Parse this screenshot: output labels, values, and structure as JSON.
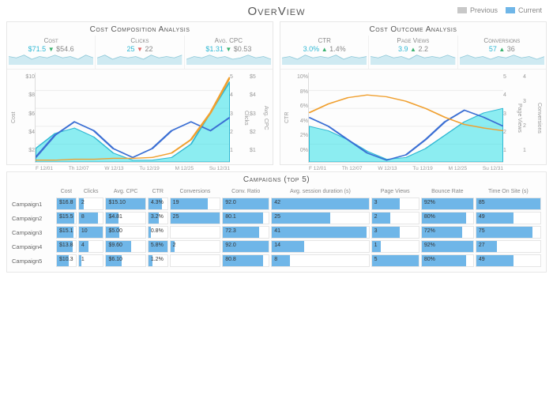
{
  "title": "OverView",
  "legend": {
    "previous": "Previous",
    "current": "Current",
    "prev_color": "#c8c8c8",
    "cur_color": "#6fb6e8"
  },
  "colors": {
    "cyan": "#2fe0e8",
    "cyan_line": "#2fb8d4",
    "blue": "#3b6fd4",
    "orange": "#f0a030",
    "grid": "#eeeeee",
    "spark_fill": "#cfeaf2",
    "spark_line": "#8fc8d8"
  },
  "left_panel": {
    "title": "Cost Composition Analysis",
    "kpis": [
      {
        "label": "Cost",
        "current": "$71.5",
        "previous": "$54.6",
        "dir": "down"
      },
      {
        "label": "Clicks",
        "current": "25",
        "previous": "22",
        "dir": "down_red"
      },
      {
        "label": "Avg. CPC",
        "current": "$1.31",
        "previous": "$0.53",
        "dir": "down"
      }
    ],
    "sparks": [
      [
        6,
        5,
        7,
        4,
        6,
        5,
        7,
        5,
        6,
        4,
        7,
        5
      ],
      [
        5,
        7,
        4,
        6,
        5,
        6,
        4,
        7,
        5,
        6,
        5,
        7
      ],
      [
        4,
        6,
        5,
        7,
        5,
        6,
        4,
        5,
        7,
        5,
        6,
        4
      ]
    ],
    "chart": {
      "x_labels": [
        "F 12/01",
        "Th 12/07",
        "W 12/13",
        "Tu 12/19",
        "M 12/25",
        "Su 12/31"
      ],
      "y_left": {
        "title": "Cost",
        "ticks": [
          "$10",
          "$8",
          "$6",
          "$4",
          "$2"
        ]
      },
      "y_right1": {
        "title": "Clicks",
        "ticks": [
          "5",
          "4",
          "3",
          "2",
          "1"
        ]
      },
      "y_right2": {
        "title": "Avg. CPC",
        "ticks": [
          "$5",
          "$4",
          "$3",
          "$2",
          "$1"
        ]
      },
      "area_cyan": [
        0.15,
        0.32,
        0.38,
        0.28,
        0.1,
        0.02,
        0.02,
        0.05,
        0.2,
        0.55,
        0.9
      ],
      "line_blue": [
        0.05,
        0.3,
        0.45,
        0.35,
        0.15,
        0.05,
        0.15,
        0.35,
        0.45,
        0.35,
        0.5
      ],
      "line_orange": [
        0.02,
        0.02,
        0.03,
        0.03,
        0.04,
        0.04,
        0.05,
        0.1,
        0.25,
        0.55,
        0.95
      ]
    }
  },
  "right_panel": {
    "title": "Cost Outcome Analysis",
    "kpis": [
      {
        "label": "CTR",
        "current": "3.0%",
        "previous": "1.4%",
        "dir": "up"
      },
      {
        "label": "Page Views",
        "current": "3.9",
        "previous": "2.2",
        "dir": "up"
      },
      {
        "label": "Conversions",
        "current": "57",
        "previous": "36",
        "dir": "up"
      }
    ],
    "sparks": [
      [
        5,
        6,
        4,
        7,
        5,
        6,
        5,
        7,
        4,
        6,
        5,
        6
      ],
      [
        6,
        5,
        7,
        5,
        6,
        4,
        7,
        5,
        6,
        5,
        7,
        5
      ],
      [
        5,
        7,
        5,
        6,
        4,
        6,
        5,
        7,
        5,
        6,
        4,
        6
      ]
    ],
    "chart": {
      "x_labels": [
        "F 12/01",
        "Th 12/07",
        "W 12/13",
        "Tu 12/19",
        "M 12/25",
        "Su 12/31"
      ],
      "y_left": {
        "title": "CTR",
        "ticks": [
          "10%",
          "8%",
          "6%",
          "4%",
          "2%",
          "0%"
        ]
      },
      "y_right1": {
        "title": "Page Views",
        "ticks": [
          "5",
          "4",
          "3",
          "2",
          "1"
        ]
      },
      "y_right2": {
        "title": "Conversions",
        "ticks": [
          "4",
          "3",
          "2",
          "1"
        ]
      },
      "area_cyan": [
        0.4,
        0.35,
        0.25,
        0.12,
        0.03,
        0.05,
        0.15,
        0.3,
        0.45,
        0.55,
        0.6
      ],
      "line_blue": [
        0.5,
        0.4,
        0.25,
        0.1,
        0.02,
        0.08,
        0.25,
        0.45,
        0.58,
        0.5,
        0.4
      ],
      "line_orange": [
        0.55,
        0.65,
        0.72,
        0.75,
        0.73,
        0.68,
        0.6,
        0.5,
        0.42,
        0.38,
        0.35
      ]
    }
  },
  "campaigns": {
    "title": "Campaigns (top 5)",
    "columns": [
      "Cost",
      "Clicks",
      "Avg. CPC",
      "CTR",
      "Conversions",
      "Conv. Ratio",
      "Avg. session duration (s)",
      "Page Views",
      "Bounce Rate",
      "Time On Site (s)"
    ],
    "rows": [
      {
        "label": "Campaign1",
        "cells": [
          {
            "v": "$16.8",
            "p": 100
          },
          {
            "v": "2",
            "p": 20
          },
          {
            "v": "$15.10",
            "p": 100
          },
          {
            "v": "4.3%",
            "p": 74
          },
          {
            "v": "19",
            "p": 76
          },
          {
            "v": "92.0",
            "p": 100
          },
          {
            "v": "42",
            "p": 100
          },
          {
            "v": "3",
            "p": 60
          },
          {
            "v": "92%",
            "p": 100
          },
          {
            "v": "85",
            "p": 100
          }
        ]
      },
      {
        "label": "Campaign2",
        "cells": [
          {
            "v": "$15.5",
            "p": 92
          },
          {
            "v": "8",
            "p": 80
          },
          {
            "v": "$4.81",
            "p": 32
          },
          {
            "v": "3.2%",
            "p": 55
          },
          {
            "v": "25",
            "p": 100
          },
          {
            "v": "80.1",
            "p": 87
          },
          {
            "v": "25",
            "p": 60
          },
          {
            "v": "2",
            "p": 40
          },
          {
            "v": "80%",
            "p": 87
          },
          {
            "v": "49",
            "p": 58
          }
        ]
      },
      {
        "label": "Campaign3",
        "cells": [
          {
            "v": "$15.1",
            "p": 90
          },
          {
            "v": "10",
            "p": 100
          },
          {
            "v": "$5.00",
            "p": 33
          },
          {
            "v": "0.8%",
            "p": 14
          },
          {
            "v": "",
            "p": 0
          },
          {
            "v": "72.3",
            "p": 79
          },
          {
            "v": "41",
            "p": 98
          },
          {
            "v": "3",
            "p": 60
          },
          {
            "v": "72%",
            "p": 78
          },
          {
            "v": "75",
            "p": 88
          }
        ]
      },
      {
        "label": "Campaign4",
        "cells": [
          {
            "v": "$13.8",
            "p": 82
          },
          {
            "v": "4",
            "p": 40
          },
          {
            "v": "$9.60",
            "p": 64
          },
          {
            "v": "5.8%",
            "p": 100
          },
          {
            "v": "2",
            "p": 8
          },
          {
            "v": "92.0",
            "p": 100
          },
          {
            "v": "14",
            "p": 33
          },
          {
            "v": "1",
            "p": 20
          },
          {
            "v": "92%",
            "p": 100
          },
          {
            "v": "27",
            "p": 32
          }
        ]
      },
      {
        "label": "Campaign5",
        "cells": [
          {
            "v": "$10.3",
            "p": 61
          },
          {
            "v": "1",
            "p": 10
          },
          {
            "v": "$6.10",
            "p": 40
          },
          {
            "v": "1.2%",
            "p": 21
          },
          {
            "v": "",
            "p": 0
          },
          {
            "v": "80.8",
            "p": 88
          },
          {
            "v": "8",
            "p": 19
          },
          {
            "v": "5",
            "p": 100
          },
          {
            "v": "80%",
            "p": 87
          },
          {
            "v": "49",
            "p": 58
          }
        ]
      }
    ]
  }
}
